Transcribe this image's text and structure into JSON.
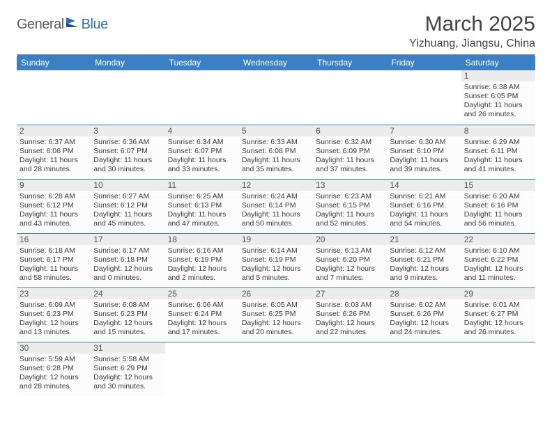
{
  "logo": {
    "part1": "General",
    "part2": "Blue"
  },
  "title": "March 2025",
  "location": "Yizhuang, Jiangsu, China",
  "colors": {
    "header_bg": "#3b7fc4",
    "header_fg": "#ffffff",
    "daynum_bg": "#ececec",
    "rule": "#3b7fc4"
  },
  "dayNames": [
    "Sunday",
    "Monday",
    "Tuesday",
    "Wednesday",
    "Thursday",
    "Friday",
    "Saturday"
  ],
  "firstDayOffset": 6,
  "daysInMonth": 31,
  "days": {
    "1": {
      "sunrise": "6:38 AM",
      "sunset": "6:05 PM",
      "daylight": "11 hours and 26 minutes."
    },
    "2": {
      "sunrise": "6:37 AM",
      "sunset": "6:06 PM",
      "daylight": "11 hours and 28 minutes."
    },
    "3": {
      "sunrise": "6:36 AM",
      "sunset": "6:07 PM",
      "daylight": "11 hours and 30 minutes."
    },
    "4": {
      "sunrise": "6:34 AM",
      "sunset": "6:07 PM",
      "daylight": "11 hours and 33 minutes."
    },
    "5": {
      "sunrise": "6:33 AM",
      "sunset": "6:08 PM",
      "daylight": "11 hours and 35 minutes."
    },
    "6": {
      "sunrise": "6:32 AM",
      "sunset": "6:09 PM",
      "daylight": "11 hours and 37 minutes."
    },
    "7": {
      "sunrise": "6:30 AM",
      "sunset": "6:10 PM",
      "daylight": "11 hours and 39 minutes."
    },
    "8": {
      "sunrise": "6:29 AM",
      "sunset": "6:11 PM",
      "daylight": "11 hours and 41 minutes."
    },
    "9": {
      "sunrise": "6:28 AM",
      "sunset": "6:12 PM",
      "daylight": "11 hours and 43 minutes."
    },
    "10": {
      "sunrise": "6:27 AM",
      "sunset": "6:12 PM",
      "daylight": "11 hours and 45 minutes."
    },
    "11": {
      "sunrise": "6:25 AM",
      "sunset": "6:13 PM",
      "daylight": "11 hours and 47 minutes."
    },
    "12": {
      "sunrise": "6:24 AM",
      "sunset": "6:14 PM",
      "daylight": "11 hours and 50 minutes."
    },
    "13": {
      "sunrise": "6:23 AM",
      "sunset": "6:15 PM",
      "daylight": "11 hours and 52 minutes."
    },
    "14": {
      "sunrise": "6:21 AM",
      "sunset": "6:16 PM",
      "daylight": "11 hours and 54 minutes."
    },
    "15": {
      "sunrise": "6:20 AM",
      "sunset": "6:16 PM",
      "daylight": "11 hours and 56 minutes."
    },
    "16": {
      "sunrise": "6:18 AM",
      "sunset": "6:17 PM",
      "daylight": "11 hours and 58 minutes."
    },
    "17": {
      "sunrise": "6:17 AM",
      "sunset": "6:18 PM",
      "daylight": "12 hours and 0 minutes."
    },
    "18": {
      "sunrise": "6:16 AM",
      "sunset": "6:19 PM",
      "daylight": "12 hours and 2 minutes."
    },
    "19": {
      "sunrise": "6:14 AM",
      "sunset": "6:19 PM",
      "daylight": "12 hours and 5 minutes."
    },
    "20": {
      "sunrise": "6:13 AM",
      "sunset": "6:20 PM",
      "daylight": "12 hours and 7 minutes."
    },
    "21": {
      "sunrise": "6:12 AM",
      "sunset": "6:21 PM",
      "daylight": "12 hours and 9 minutes."
    },
    "22": {
      "sunrise": "6:10 AM",
      "sunset": "6:22 PM",
      "daylight": "12 hours and 11 minutes."
    },
    "23": {
      "sunrise": "6:09 AM",
      "sunset": "6:23 PM",
      "daylight": "12 hours and 13 minutes."
    },
    "24": {
      "sunrise": "6:08 AM",
      "sunset": "6:23 PM",
      "daylight": "12 hours and 15 minutes."
    },
    "25": {
      "sunrise": "6:06 AM",
      "sunset": "6:24 PM",
      "daylight": "12 hours and 17 minutes."
    },
    "26": {
      "sunrise": "6:05 AM",
      "sunset": "6:25 PM",
      "daylight": "12 hours and 20 minutes."
    },
    "27": {
      "sunrise": "6:03 AM",
      "sunset": "6:26 PM",
      "daylight": "12 hours and 22 minutes."
    },
    "28": {
      "sunrise": "6:02 AM",
      "sunset": "6:26 PM",
      "daylight": "12 hours and 24 minutes."
    },
    "29": {
      "sunrise": "6:01 AM",
      "sunset": "6:27 PM",
      "daylight": "12 hours and 26 minutes."
    },
    "30": {
      "sunrise": "5:59 AM",
      "sunset": "6:28 PM",
      "daylight": "12 hours and 28 minutes."
    },
    "31": {
      "sunrise": "5:58 AM",
      "sunset": "6:29 PM",
      "daylight": "12 hours and 30 minutes."
    }
  }
}
